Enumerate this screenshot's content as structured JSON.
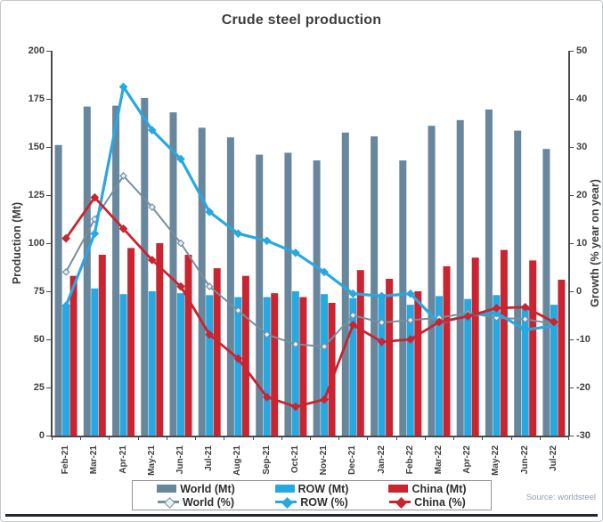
{
  "source": {
    "text": "Source: worldsteel"
  },
  "chart_data": {
    "type": "bar",
    "subtype": "combo-bar-line",
    "title": "Crude steel production",
    "grid": false,
    "legend_position": "bottom",
    "categories": [
      "Feb-21",
      "Mar-21",
      "Apr-21",
      "May-21",
      "Jun-21",
      "Jul-21",
      "Aug-21",
      "Sep-21",
      "Oct-21",
      "Nov-21",
      "Dec-21",
      "Jan-22",
      "Feb-22",
      "Mar-22",
      "Apr-22",
      "May-22",
      "Jun-22",
      "Jul-22"
    ],
    "left_axis": {
      "label": "Production (Mt)",
      "min": 0,
      "max": 200,
      "ticks": [
        0,
        25,
        50,
        75,
        100,
        125,
        150,
        175,
        200
      ]
    },
    "right_axis": {
      "label": "Growth (% year on year)",
      "min": -30,
      "max": 50,
      "ticks": [
        -30,
        -20,
        -10,
        0,
        10,
        20,
        30,
        40,
        50
      ]
    },
    "bar_series": [
      {
        "name": "World (Mt)",
        "color": "#68869c",
        "values": [
          151,
          171,
          171.5,
          175.5,
          168,
          160,
          155,
          146,
          147,
          143,
          157.5,
          155.5,
          143,
          161,
          164,
          169.5,
          158.5,
          149
        ]
      },
      {
        "name": "ROW (Mt)",
        "color": "#27a8e0",
        "values": [
          68,
          76.5,
          73.5,
          75,
          74,
          73,
          72,
          72,
          75,
          73.5,
          71.5,
          73.5,
          68,
          72.5,
          71,
          73,
          67.5,
          68
        ]
      },
      {
        "name": "China (Mt)",
        "color": "#c92430",
        "values": [
          83,
          94,
          97.5,
          100,
          94,
          87,
          83,
          74,
          72,
          69,
          86,
          81.5,
          75,
          88,
          92.5,
          96.5,
          91,
          81
        ]
      }
    ],
    "line_series": [
      {
        "name": "World (%)",
        "color": "#74909f",
        "marker_fill": "#e9eff3",
        "width": 2,
        "values": [
          4,
          15,
          24,
          17.5,
          10,
          1,
          -4,
          -9,
          -11,
          -11.5,
          -5,
          -6.5,
          -6,
          -5.5,
          -4.5,
          -5.5,
          -5.8,
          -6.8
        ]
      },
      {
        "name": "ROW (%)",
        "color": "#27a8e0",
        "marker_fill": "#27a8e0",
        "width": 3.2,
        "values": [
          -3,
          12,
          42.5,
          33.5,
          27.5,
          16.5,
          12,
          10.5,
          8,
          4,
          -0.5,
          -1,
          -0.5,
          -6.6,
          -5,
          -4.5,
          -8,
          -7.2
        ]
      },
      {
        "name": "China (%)",
        "color": "#c92430",
        "marker_fill": "#c92430",
        "width": 2.8,
        "values": [
          11,
          19.5,
          13,
          6.5,
          1,
          -9,
          -14,
          -22,
          -24,
          -22.5,
          -7,
          -10.5,
          -10,
          -6.4,
          -5.2,
          -3.5,
          -3.3,
          -6.4
        ]
      }
    ]
  }
}
